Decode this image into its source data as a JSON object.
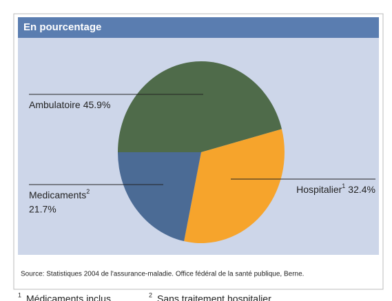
{
  "chart_data": {
    "type": "pie",
    "title": "En pourcentage",
    "categories": [
      "Ambulatoire",
      "Hospitalier",
      "Medicaments"
    ],
    "footnote_refs": [
      null,
      "1",
      "2"
    ],
    "values": [
      45.9,
      32.4,
      21.7
    ],
    "value_labels": [
      "45.9%",
      "32.4%",
      "21.7%"
    ],
    "colors": [
      "#4f6b4a",
      "#f6a42c",
      "#4b6b95"
    ],
    "start_angle": 270,
    "source": "Source: Statistiques 2004 de l'assurance-maladie. Office fédéral de la santé publique, Berne.",
    "footnotes": [
      {
        "marker": "1",
        "text": "Médicaments inclus"
      },
      {
        "marker": "2",
        "text": "Sans traitement hospitalier"
      }
    ]
  }
}
